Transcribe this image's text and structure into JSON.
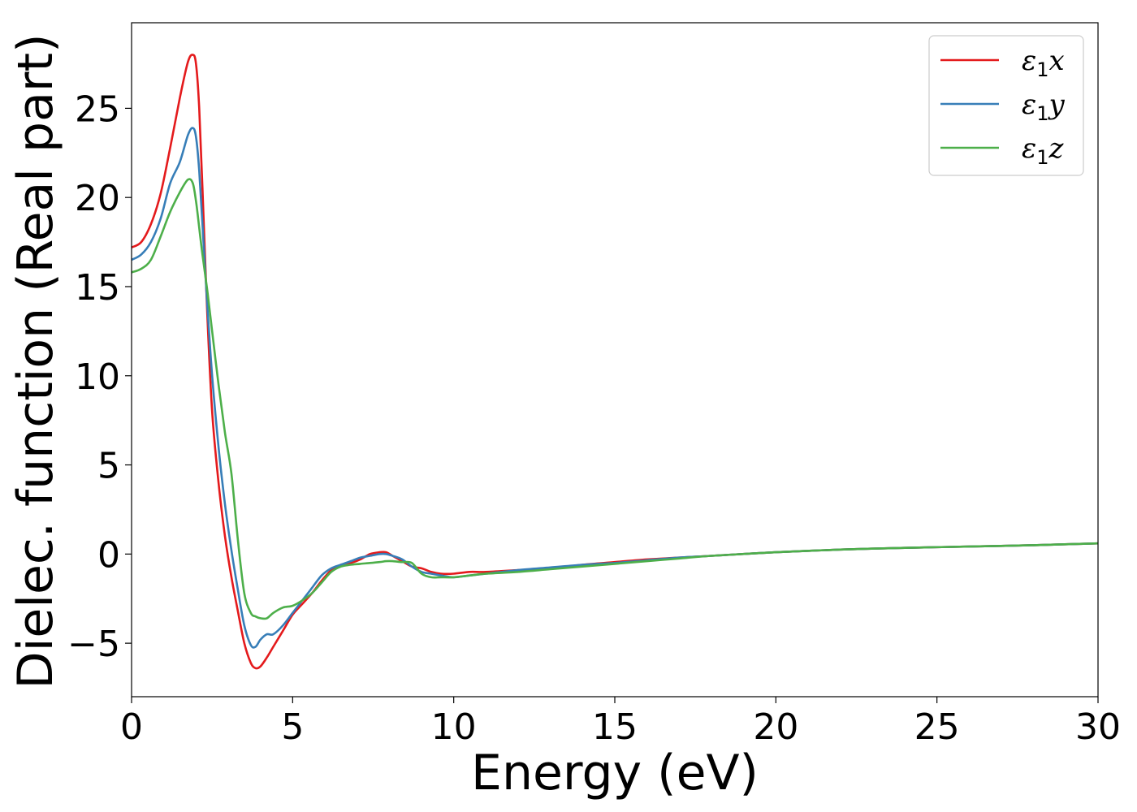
{
  "chart_data": {
    "type": "line",
    "xlabel": "Energy (eV)",
    "ylabel": "Dielec. function (Real part)",
    "xlim": [
      0,
      30
    ],
    "ylim": [
      -8.0,
      29.8
    ],
    "xticks": [
      "0",
      "5",
      "10",
      "15",
      "20",
      "25",
      "30"
    ],
    "xtick_values": [
      0,
      5,
      10,
      15,
      20,
      25,
      30
    ],
    "yticks": [
      "−5",
      "0",
      "5",
      "10",
      "15",
      "20",
      "25"
    ],
    "ytick_values": [
      -5,
      0,
      5,
      10,
      15,
      20,
      25
    ],
    "grid": false,
    "legend_position": "top-right",
    "series": [
      {
        "name": "ε1x",
        "name_parts": {
          "symbol": "ε",
          "sub": "1",
          "axis": "x"
        },
        "color": "#e41a1c",
        "x": [
          0,
          0.3,
          0.6,
          0.9,
          1.2,
          1.5,
          1.75,
          1.9,
          2.0,
          2.1,
          2.2,
          2.35,
          2.5,
          2.7,
          2.9,
          3.1,
          3.3,
          3.5,
          3.7,
          3.85,
          4.0,
          4.2,
          4.4,
          4.7,
          5.0,
          5.3,
          5.6,
          5.9,
          6.2,
          6.5,
          6.8,
          7.1,
          7.4,
          7.7,
          7.9,
          8.1,
          8.4,
          8.7,
          9.0,
          9.3,
          9.6,
          10.0,
          10.5,
          11.0,
          12.0,
          13.0,
          14.0,
          15.0,
          16.0,
          17.0,
          18.0,
          20.0,
          22.0,
          24.0,
          26.0,
          28.0,
          30.0
        ],
        "y": [
          17.2,
          17.5,
          18.5,
          20.2,
          22.8,
          25.6,
          27.6,
          28.0,
          27.5,
          25.0,
          20.5,
          13.5,
          8.0,
          4.0,
          1.0,
          -1.3,
          -3.2,
          -5.0,
          -6.1,
          -6.4,
          -6.3,
          -5.8,
          -5.2,
          -4.3,
          -3.4,
          -2.8,
          -2.2,
          -1.5,
          -0.9,
          -0.6,
          -0.5,
          -0.3,
          0.0,
          0.1,
          0.1,
          -0.1,
          -0.4,
          -0.7,
          -0.8,
          -1.0,
          -1.1,
          -1.1,
          -1.0,
          -1.0,
          -0.9,
          -0.8,
          -0.6,
          -0.45,
          -0.3,
          -0.2,
          -0.1,
          0.1,
          0.25,
          0.35,
          0.42,
          0.5,
          0.6
        ]
      },
      {
        "name": "ε1y",
        "name_parts": {
          "symbol": "ε",
          "sub": "1",
          "axis": "y"
        },
        "color": "#377eb8",
        "x": [
          0,
          0.3,
          0.6,
          0.9,
          1.2,
          1.5,
          1.75,
          1.9,
          2.0,
          2.1,
          2.2,
          2.35,
          2.5,
          2.7,
          2.9,
          3.1,
          3.3,
          3.5,
          3.7,
          3.85,
          4.0,
          4.2,
          4.4,
          4.7,
          5.0,
          5.3,
          5.6,
          5.9,
          6.2,
          6.5,
          6.8,
          7.1,
          7.4,
          7.7,
          7.9,
          8.1,
          8.4,
          8.7,
          9.0,
          9.3,
          9.6,
          10.0,
          10.5,
          11.0,
          12.0,
          13.0,
          14.0,
          15.0,
          16.0,
          17.0,
          18.0,
          20.0,
          22.0,
          24.0,
          26.0,
          28.0,
          30.0
        ],
        "y": [
          16.5,
          16.8,
          17.5,
          18.8,
          20.8,
          22.0,
          23.5,
          23.9,
          23.4,
          21.5,
          18.5,
          14.0,
          10.0,
          6.0,
          2.8,
          0.2,
          -2.0,
          -4.0,
          -5.1,
          -5.2,
          -4.8,
          -4.5,
          -4.5,
          -4.0,
          -3.3,
          -2.6,
          -1.9,
          -1.2,
          -0.8,
          -0.6,
          -0.4,
          -0.2,
          -0.1,
          0.0,
          0.0,
          -0.1,
          -0.3,
          -0.7,
          -1.0,
          -1.1,
          -1.2,
          -1.3,
          -1.2,
          -1.1,
          -0.9,
          -0.75,
          -0.6,
          -0.5,
          -0.35,
          -0.2,
          -0.1,
          0.1,
          0.25,
          0.35,
          0.42,
          0.5,
          0.6
        ]
      },
      {
        "name": "ε1z",
        "name_parts": {
          "symbol": "ε",
          "sub": "1",
          "axis": "z"
        },
        "color": "#4daf4a",
        "x": [
          0,
          0.3,
          0.6,
          0.9,
          1.2,
          1.5,
          1.75,
          1.9,
          2.0,
          2.1,
          2.2,
          2.35,
          2.5,
          2.7,
          2.9,
          3.1,
          3.3,
          3.5,
          3.7,
          3.85,
          4.0,
          4.2,
          4.4,
          4.7,
          5.0,
          5.3,
          5.6,
          5.9,
          6.2,
          6.5,
          6.8,
          7.1,
          7.4,
          7.7,
          7.9,
          8.1,
          8.4,
          8.7,
          9.0,
          9.3,
          9.6,
          10.0,
          10.5,
          11.0,
          12.0,
          13.0,
          14.0,
          15.0,
          16.0,
          17.0,
          18.0,
          20.0,
          22.0,
          24.0,
          26.0,
          28.0,
          30.0
        ],
        "y": [
          15.8,
          16.0,
          16.5,
          17.8,
          19.2,
          20.3,
          21.0,
          20.8,
          19.8,
          18.3,
          16.8,
          14.8,
          12.5,
          9.5,
          6.8,
          4.5,
          0.8,
          -2.2,
          -3.3,
          -3.5,
          -3.6,
          -3.6,
          -3.3,
          -3.0,
          -2.9,
          -2.6,
          -2.2,
          -1.6,
          -1.0,
          -0.7,
          -0.6,
          -0.55,
          -0.5,
          -0.45,
          -0.4,
          -0.4,
          -0.45,
          -0.5,
          -1.1,
          -1.3,
          -1.3,
          -1.3,
          -1.2,
          -1.1,
          -1.0,
          -0.85,
          -0.7,
          -0.55,
          -0.4,
          -0.25,
          -0.1,
          0.1,
          0.25,
          0.35,
          0.42,
          0.5,
          0.6
        ]
      }
    ]
  }
}
